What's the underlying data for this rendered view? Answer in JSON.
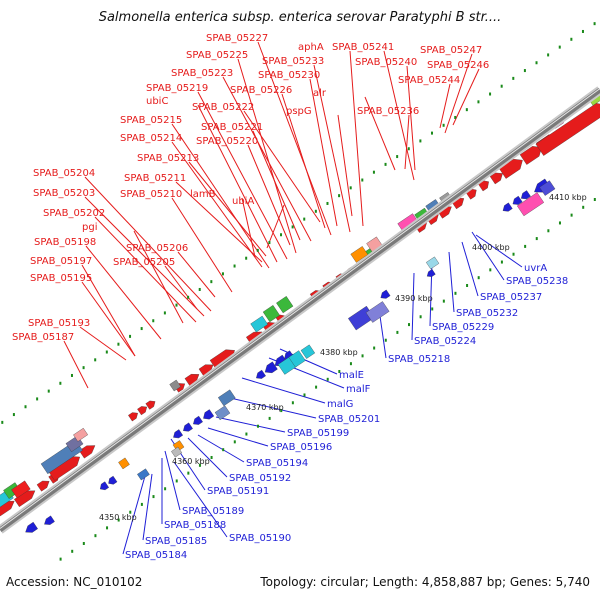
{
  "map": {
    "title": "Salmonella enterica subsp. enterica serovar Paratyphi B str....",
    "accession": "Accession: NC_010102",
    "summary": "Topology: circular; Length: 4,858,887 bp; Genes: 5,740",
    "colors": {
      "forward": "#e51c1c",
      "reverse": "#1f1fd6",
      "backbone": "#9a9a9a",
      "tick": "#1a8a1a"
    },
    "ticks": [
      "4350 kbp",
      "4360 kbp",
      "4370 kbp",
      "4380 kbp",
      "4390 kbp",
      "4400 kbp",
      "4410 kbp"
    ],
    "forward_labels": [
      "SPAB_05227",
      "aphA",
      "SPAB_05241",
      "SPAB_05247",
      "SPAB_05225",
      "SPAB_05233",
      "SPAB_05240",
      "SPAB_05246",
      "SPAB_05223",
      "SPAB_05230",
      "SPAB_05244",
      "SPAB_05219",
      "SPAB_05226",
      "alr",
      "ubiC",
      "SPAB_05222",
      "pspG",
      "SPAB_05236",
      "SPAB_05215",
      "SPAB_05221",
      "SPAB_05214",
      "SPAB_05220",
      "SPAB_05213",
      "SPAB_05211",
      "SPAB_05210",
      "lamB",
      "SPAB_05204",
      "ubiA",
      "SPAB_05203",
      "SPAB_05202",
      "pgi",
      "SPAB_05198",
      "SPAB_05206",
      "SPAB_05197",
      "SPAB_05205",
      "SPAB_05195",
      "SPAB_05193",
      "SPAB_05187"
    ],
    "reverse_labels": [
      "uvrA",
      "SPAB_05238",
      "SPAB_05237",
      "SPAB_05232",
      "SPAB_05229",
      "SPAB_05224",
      "SPAB_05218",
      "malE",
      "malF",
      "malG",
      "SPAB_05201",
      "SPAB_05199",
      "SPAB_05196",
      "SPAB_05194",
      "SPAB_05192",
      "SPAB_05191",
      "SPAB_05189",
      "SPAB_05188",
      "SPAB_05190",
      "SPAB_05185",
      "SPAB_05184"
    ]
  }
}
